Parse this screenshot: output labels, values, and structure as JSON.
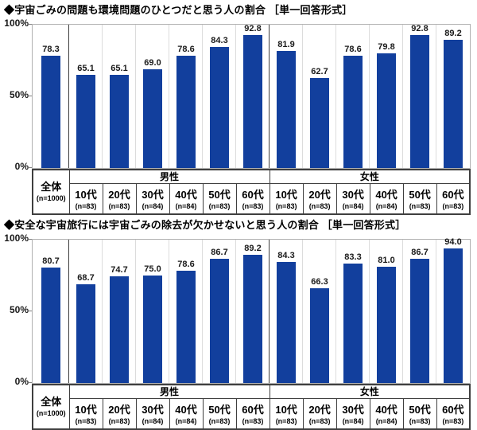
{
  "colors": {
    "bar": "#123f9d",
    "value_label": "#1a1a1a",
    "plot_border": "#b0b0b0",
    "column_separator_light": "#dcdcdc",
    "column_separator_dark": "#3f3f3f",
    "table_border": "#3f3f3f"
  },
  "axis": {
    "ticks": [
      "100%",
      "50%",
      "0%"
    ],
    "ylim": [
      0,
      100
    ]
  },
  "table": {
    "total": {
      "label": "全体",
      "n": "(n=1000)"
    },
    "groups": [
      {
        "label": "男性",
        "cols": [
          {
            "age": "10代",
            "n": "(n=83)"
          },
          {
            "age": "20代",
            "n": "(n=83)"
          },
          {
            "age": "30代",
            "n": "(n=84)"
          },
          {
            "age": "40代",
            "n": "(n=84)"
          },
          {
            "age": "50代",
            "n": "(n=83)"
          },
          {
            "age": "60代",
            "n": "(n=83)"
          }
        ]
      },
      {
        "label": "女性",
        "cols": [
          {
            "age": "10代",
            "n": "(n=83)"
          },
          {
            "age": "20代",
            "n": "(n=83)"
          },
          {
            "age": "30代",
            "n": "(n=84)"
          },
          {
            "age": "40代",
            "n": "(n=84)"
          },
          {
            "age": "50代",
            "n": "(n=83)"
          },
          {
            "age": "60代",
            "n": "(n=83)"
          }
        ]
      }
    ]
  },
  "chart_data": [
    {
      "type": "bar",
      "title": "◆宇宙ごみの問題も環境問題のひとつだと思う人の割合 ［単一回答形式］",
      "ylabel": "%",
      "ylim": [
        0,
        100
      ],
      "yticks": [
        "100%",
        "50%",
        "0%"
      ],
      "grid": false,
      "legend": "none",
      "categories": [
        "全体",
        "男性10代",
        "男性20代",
        "男性30代",
        "男性40代",
        "男性50代",
        "男性60代",
        "女性10代",
        "女性20代",
        "女性30代",
        "女性40代",
        "女性50代",
        "女性60代"
      ],
      "values": [
        78.3,
        65.1,
        65.1,
        69.0,
        78.6,
        84.3,
        92.8,
        81.9,
        62.7,
        78.6,
        79.8,
        92.8,
        89.2
      ]
    },
    {
      "type": "bar",
      "title": "◆安全な宇宙旅行には宇宙ごみの除去が欠かせないと思う人の割合 ［単一回答形式］",
      "ylabel": "%",
      "ylim": [
        0,
        100
      ],
      "yticks": [
        "100%",
        "50%",
        "0%"
      ],
      "grid": false,
      "legend": "none",
      "categories": [
        "全体",
        "男性10代",
        "男性20代",
        "男性30代",
        "男性40代",
        "男性50代",
        "男性60代",
        "女性10代",
        "女性20代",
        "女性30代",
        "女性40代",
        "女性50代",
        "女性60代"
      ],
      "values": [
        80.7,
        68.7,
        74.7,
        75.0,
        78.6,
        86.7,
        89.2,
        84.3,
        66.3,
        83.3,
        81.0,
        86.7,
        94.0
      ]
    }
  ]
}
